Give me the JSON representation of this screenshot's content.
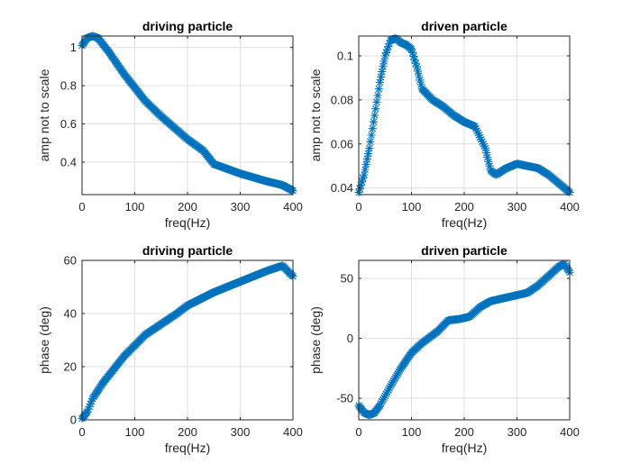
{
  "chart_data": [
    {
      "type": "scatter",
      "title": "driving particle",
      "xlabel": "freq(Hz)",
      "ylabel": "amp not to scale",
      "xlim": [
        0,
        400
      ],
      "ylim": [
        0.23,
        1.06
      ],
      "xticks": [
        0,
        100,
        200,
        300,
        400
      ],
      "yticks": [
        0.4,
        0.6,
        0.8,
        1
      ],
      "ytick_labels": [
        "0.4",
        "0.6",
        "0.8",
        "1"
      ],
      "marker": "asterisk",
      "color": "#0072bd",
      "curve_x": [
        0,
        10,
        20,
        30,
        50,
        80,
        100,
        120,
        150,
        200,
        230,
        250,
        300,
        350,
        380,
        400
      ],
      "curve_y": [
        1.01,
        1.05,
        1.06,
        1.05,
        0.98,
        0.86,
        0.79,
        0.72,
        0.64,
        0.52,
        0.46,
        0.39,
        0.34,
        0.3,
        0.28,
        0.25
      ]
    },
    {
      "type": "scatter",
      "title": "driven particle",
      "xlabel": "freq(Hz)",
      "ylabel": "amp not to scale",
      "xlim": [
        0,
        400
      ],
      "ylim": [
        0.037,
        0.109
      ],
      "xticks": [
        0,
        100,
        200,
        300,
        400
      ],
      "yticks": [
        0.04,
        0.06,
        0.08,
        0.1
      ],
      "ytick_labels": [
        "0.04",
        "0.06",
        "0.08",
        "0.1"
      ],
      "marker": "asterisk",
      "color": "#0072bd",
      "curve_x": [
        0,
        10,
        20,
        30,
        40,
        50,
        60,
        70,
        80,
        90,
        100,
        110,
        120,
        140,
        160,
        180,
        200,
        220,
        230,
        240,
        250,
        260,
        280,
        300,
        320,
        340,
        360,
        380,
        400
      ],
      "curve_y": [
        0.038,
        0.046,
        0.058,
        0.073,
        0.088,
        0.1,
        0.107,
        0.108,
        0.106,
        0.105,
        0.103,
        0.095,
        0.085,
        0.08,
        0.077,
        0.073,
        0.07,
        0.068,
        0.063,
        0.058,
        0.048,
        0.046,
        0.049,
        0.051,
        0.05,
        0.049,
        0.046,
        0.042,
        0.038
      ]
    },
    {
      "type": "scatter",
      "title": "driving particle",
      "xlabel": "freq(Hz)",
      "ylabel": "phase (deg)",
      "xlim": [
        0,
        400
      ],
      "ylim": [
        0,
        60
      ],
      "xticks": [
        0,
        100,
        200,
        300,
        400
      ],
      "yticks": [
        0,
        20,
        40,
        60
      ],
      "ytick_labels": [
        "0",
        "20",
        "40",
        "60"
      ],
      "marker": "asterisk",
      "color": "#0072bd",
      "curve_x": [
        0,
        10,
        20,
        40,
        60,
        80,
        100,
        120,
        150,
        180,
        200,
        250,
        300,
        350,
        380,
        400
      ],
      "curve_y": [
        0.5,
        3,
        8,
        14,
        19,
        24,
        28,
        32,
        36,
        40,
        43,
        48,
        52,
        56,
        58,
        54
      ]
    },
    {
      "type": "scatter",
      "title": "driven particle",
      "xlabel": "freq(Hz)",
      "ylabel": "phase (deg)",
      "xlim": [
        0,
        400
      ],
      "ylim": [
        -68,
        65
      ],
      "xticks": [
        0,
        100,
        200,
        300,
        400
      ],
      "yticks": [
        -50,
        0,
        50
      ],
      "ytick_labels": [
        "-50",
        "0",
        "50"
      ],
      "marker": "asterisk",
      "color": "#0072bd",
      "curve_x": [
        0,
        10,
        20,
        30,
        40,
        60,
        80,
        100,
        120,
        150,
        170,
        190,
        210,
        230,
        250,
        280,
        300,
        320,
        340,
        360,
        380,
        390,
        400
      ],
      "curve_y": [
        -56,
        -62,
        -64,
        -62,
        -56,
        -40,
        -25,
        -12,
        -4,
        6,
        15,
        16,
        18,
        26,
        31,
        34,
        36,
        38,
        44,
        52,
        60,
        62,
        55
      ]
    }
  ]
}
